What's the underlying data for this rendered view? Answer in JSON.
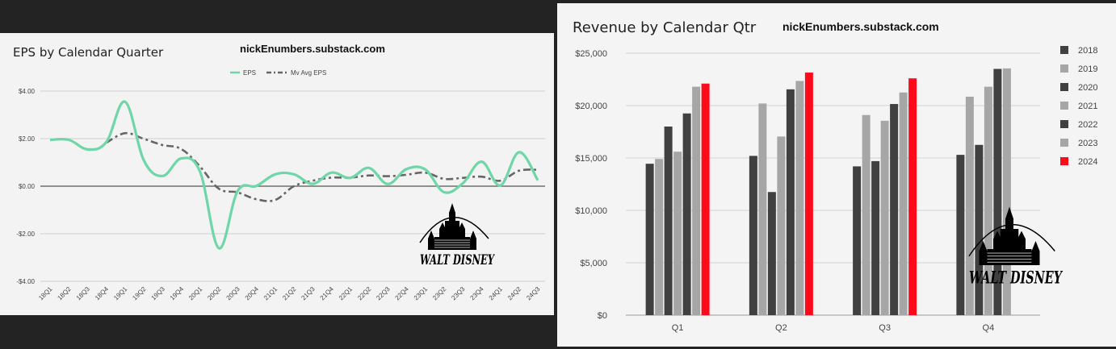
{
  "charts": [
    {
      "type": "line",
      "title": "EPS by Calendar Quarter",
      "watermark": "nickEnumbers.substack.com",
      "logo_text": "WALT DISNEY",
      "categories": [
        "18Q1",
        "18Q2",
        "18Q3",
        "18Q4",
        "19Q1",
        "19Q2",
        "19Q3",
        "19Q4",
        "20Q1",
        "20Q2",
        "20Q3",
        "20Q4",
        "21Q1",
        "21Q2",
        "21Q3",
        "21Q4",
        "22Q1",
        "22Q2",
        "22Q3",
        "22Q4",
        "23Q1",
        "23Q2",
        "23Q3",
        "23Q4",
        "24Q1",
        "24Q2",
        "24Q3"
      ],
      "series": [
        {
          "name": "EPS",
          "style": "solid",
          "color": "#6fd6a8",
          "values": [
            1.95,
            1.95,
            1.55,
            1.86,
            3.55,
            1.08,
            0.43,
            1.17,
            0.6,
            -2.61,
            -0.2,
            0.01,
            0.5,
            0.5,
            0.1,
            0.57,
            0.35,
            0.77,
            0.09,
            0.72,
            0.7,
            -0.25,
            0.12,
            1.03,
            0.03,
            1.43,
            0.25
          ]
        },
        {
          "name": "Mv Avg EPS",
          "style": "dashdot",
          "color": "#666666",
          "values": [
            null,
            null,
            null,
            1.83,
            2.23,
            1.99,
            1.73,
            1.56,
            0.82,
            -0.11,
            -0.26,
            -0.55,
            -0.58,
            0.0,
            0.23,
            0.36,
            0.36,
            0.45,
            0.42,
            0.48,
            0.57,
            0.31,
            0.35,
            0.4,
            0.23,
            0.65,
            0.69
          ]
        }
      ],
      "yticks": [
        "$4.00",
        "$2.00",
        "$0.00",
        "-$2.00",
        "-$4.00"
      ],
      "ylim": [
        -4,
        4
      ],
      "legend": "top-center",
      "grid": true
    },
    {
      "type": "bar",
      "title": "Revenue by Calendar Qtr",
      "watermark": "nickEnumbers.substack.com",
      "logo_text": "WALT DISNEY",
      "categories": [
        "Q1",
        "Q2",
        "Q3",
        "Q4"
      ],
      "series": [
        {
          "name": "2018",
          "color": "#404040",
          "values": [
            14450,
            15200,
            14200,
            15300
          ]
        },
        {
          "name": "2019",
          "color": "#a6a6a6",
          "values": [
            14900,
            20200,
            19100,
            20850
          ]
        },
        {
          "name": "2020",
          "color": "#404040",
          "values": [
            18000,
            11750,
            14700,
            16250
          ]
        },
        {
          "name": "2021",
          "color": "#a6a6a6",
          "values": [
            15600,
            17050,
            18550,
            21800
          ]
        },
        {
          "name": "2022",
          "color": "#404040",
          "values": [
            19250,
            21550,
            20150,
            23500
          ]
        },
        {
          "name": "2023",
          "color": "#a6a6a6",
          "values": [
            21800,
            22350,
            21250,
            23550
          ]
        },
        {
          "name": "2024",
          "color": "#ff0a1a",
          "values": [
            22100,
            23150,
            22600,
            null
          ]
        }
      ],
      "yticks": [
        "$25,000",
        "$20,000",
        "$15,000",
        "$10,000",
        "$5,000",
        "$0"
      ],
      "ylim": [
        0,
        25000
      ],
      "legend": "right",
      "grid": true
    }
  ]
}
